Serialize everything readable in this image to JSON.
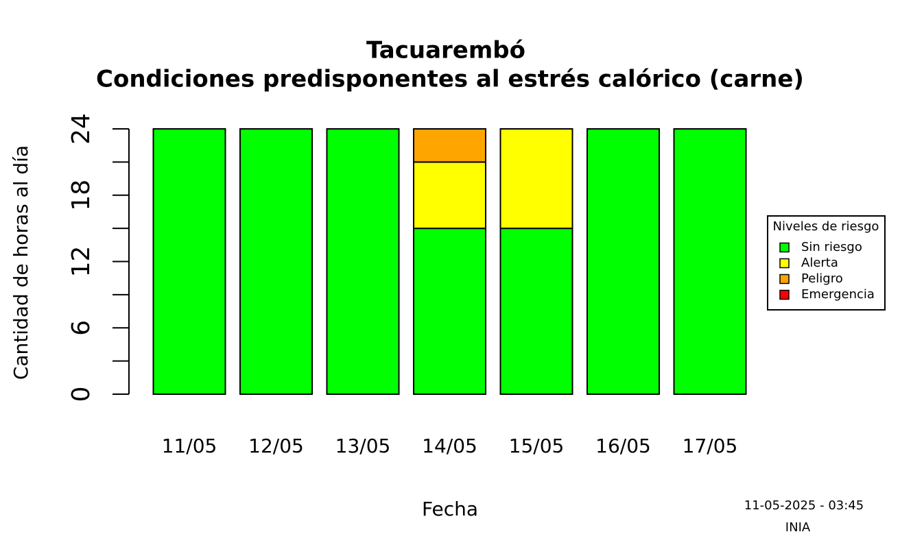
{
  "chart_data": {
    "type": "stacked_bar",
    "title": "Tacuarembó",
    "subtitle": "Condiciones predisponentes al estrés calórico (carne)",
    "x_label": "Fecha",
    "y_label": "Cantidad de horas al día",
    "categories": [
      "11/05",
      "12/05",
      "13/05",
      "14/05",
      "15/05",
      "16/05",
      "17/05"
    ],
    "series": [
      {
        "name": "Sin riesgo",
        "color": "#00ff00",
        "values": [
          24,
          24,
          24,
          15,
          15,
          24,
          24
        ]
      },
      {
        "name": "Alerta",
        "color": "#ffff00",
        "values": [
          0,
          0,
          0,
          6,
          9,
          0,
          0
        ]
      },
      {
        "name": "Peligro",
        "color": "#ffa500",
        "values": [
          0,
          0,
          0,
          3,
          0,
          0,
          0
        ]
      },
      {
        "name": "Emergencia",
        "color": "#ff0000",
        "values": [
          0,
          0,
          0,
          0,
          0,
          0,
          0
        ]
      }
    ],
    "ylim": [
      0,
      24
    ],
    "yticks": [
      0,
      6,
      12,
      18,
      24
    ],
    "minor_yticks": [
      3,
      9,
      15,
      21
    ],
    "legend_title": "Niveles de riesgo",
    "legend_position": "right",
    "footer_date": "11-05-2025 - 03:45",
    "footer_source": "INIA"
  }
}
